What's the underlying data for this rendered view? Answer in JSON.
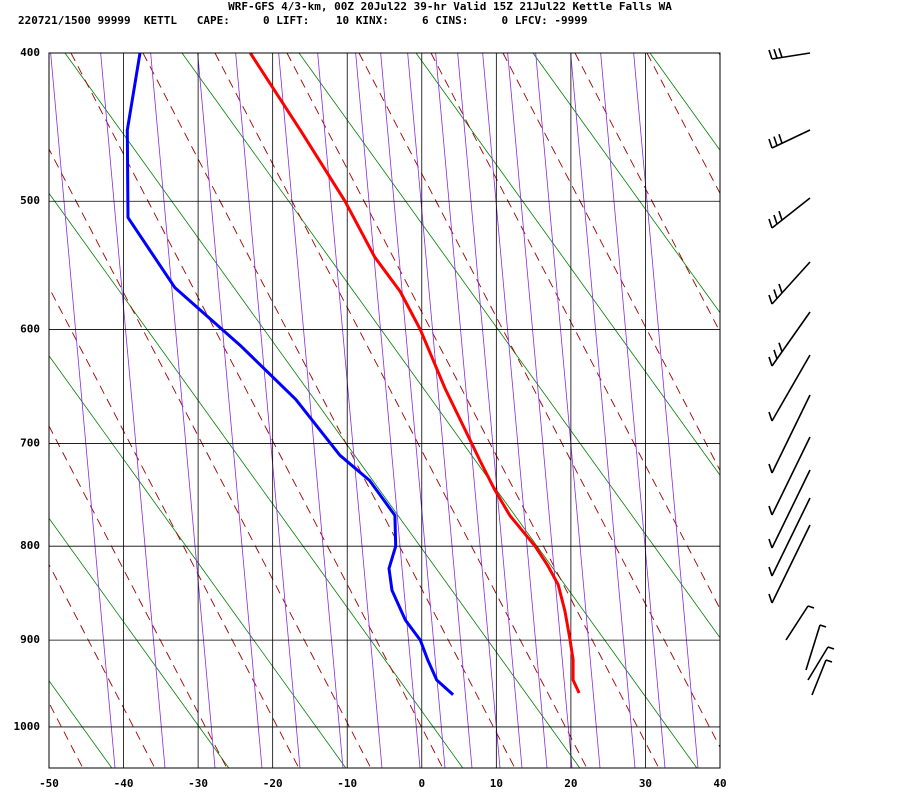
{
  "chart_data": {
    "type": "sounding",
    "title": "WRF-GFS 4/3-km, 00Z 20Jul22 39-hr Valid 15Z 21Jul22 Kettle Falls WA",
    "subtitle": "220721/1500 99999  KETTL   CAPE:     0 LIFT:    10 KINX:     6 CINS:     0 LFCV: -9999",
    "xlim": [
      -50,
      40
    ],
    "xticks": [
      -50,
      -40,
      -30,
      -20,
      -10,
      0,
      10,
      20,
      30,
      40
    ],
    "ylim": [
      1050,
      400
    ],
    "yticks": [
      400,
      500,
      600,
      700,
      800,
      900,
      1000
    ],
    "yscale": "exner",
    "grid": true,
    "series": [
      {
        "color": "#ff0000",
        "values": [
          21.1,
          20.3,
          20.3,
          19.9,
          19.2,
          18.3,
          16.9,
          15.2,
          11.8,
          9.8,
          7.8,
          6.7,
          3.1,
          -0.2,
          -2.9,
          -6.3,
          -10.3,
          -16.3,
          -23.0
        ],
        "pressure": [
          960,
          945,
          922,
          900,
          868,
          840,
          820,
          800,
          769,
          744,
          716,
          700,
          650,
          600,
          569,
          542,
          500,
          450,
          400
        ]
      },
      {
        "color": "#0000ff",
        "values": [
          4.2,
          2.0,
          0.8,
          -0.2,
          -2.2,
          -4.0,
          -4.4,
          -3.5,
          -3.6,
          -7.0,
          -11.0,
          -16.9,
          -24.4,
          -33.1,
          -39.4,
          -39.5,
          -37.8
        ],
        "pressure": [
          962,
          945,
          922,
          900,
          878,
          846,
          823,
          800,
          769,
          735,
          711,
          660,
          613,
          566,
          512,
          450,
          400
        ]
      }
    ]
  }
}
